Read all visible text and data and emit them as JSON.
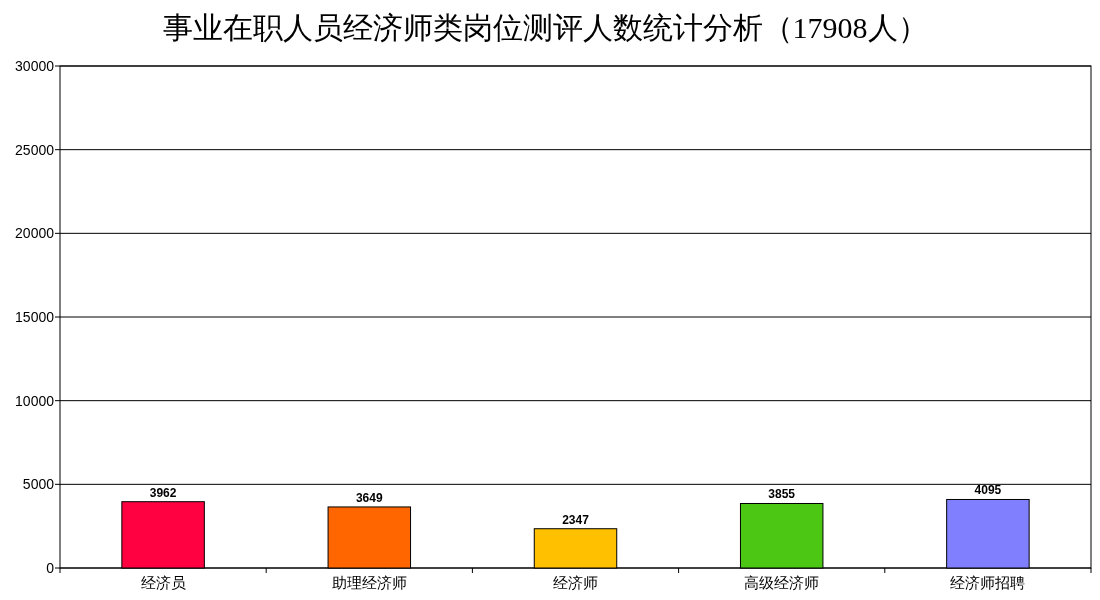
{
  "chart_data": {
    "type": "bar",
    "title": "事业在职人员经济师类岗位测评人数统计分析（17908人）",
    "categories": [
      "经济员",
      "助理经济师",
      "经济师",
      "高级经济师",
      "经济师招聘"
    ],
    "values": [
      3962,
      3649,
      2347,
      3855,
      4095
    ],
    "colors": [
      "#ff0040",
      "#ff6600",
      "#ffc000",
      "#4cc814",
      "#8080ff"
    ],
    "ylim": [
      0,
      30000
    ],
    "yticks": [
      0,
      5000,
      10000,
      15000,
      20000,
      25000,
      30000
    ],
    "grid": "y",
    "data_labels": true
  }
}
